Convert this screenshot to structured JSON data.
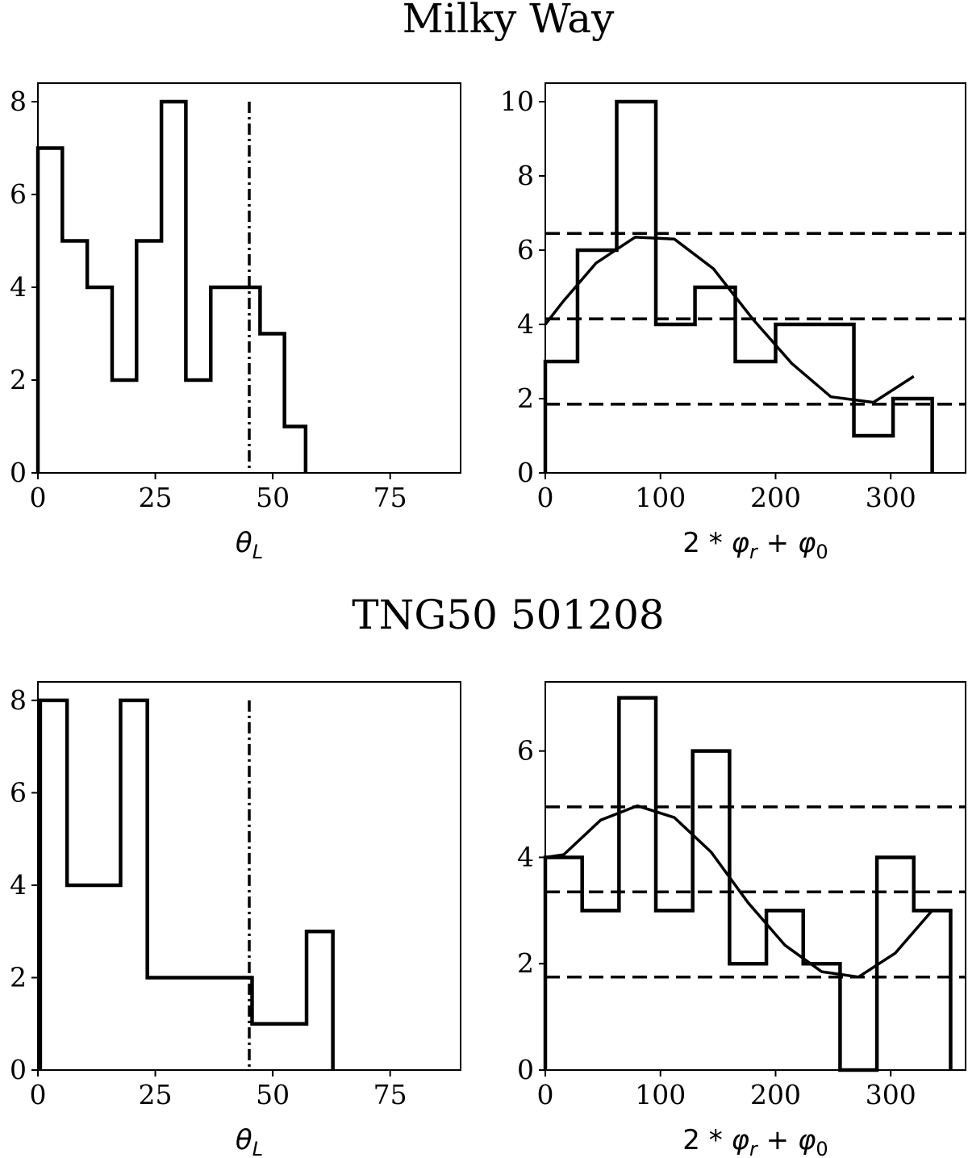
{
  "row_titles": [
    "Milky Way",
    "TNG50 501208"
  ],
  "chart_data": [
    {
      "id": "mw-theta",
      "type": "histogram",
      "row_title": "Milky Way",
      "xlabel": {
        "base": "θ",
        "sub": "L"
      },
      "xlim": [
        0,
        90
      ],
      "ylim": [
        0,
        8.4
      ],
      "xticks": [
        0,
        25,
        50,
        75
      ],
      "yticks": [
        0,
        2,
        4,
        6,
        8
      ],
      "bin_edges": [
        0,
        5.2,
        10.5,
        15.8,
        21,
        26.3,
        31.5,
        36.8,
        42,
        47.3,
        52.5,
        57
      ],
      "counts": [
        7,
        5,
        4,
        2,
        5,
        8,
        2,
        4,
        4,
        3,
        1
      ],
      "vline": 45,
      "fit_curve": null,
      "hlines": []
    },
    {
      "id": "mw-phase",
      "type": "histogram",
      "row_title": "Milky Way",
      "xlabel": {
        "pre": "2 * ",
        "base1": "φ",
        "sub1": "r",
        "mid": " + ",
        "base2": "φ",
        "sub2": "0"
      },
      "xlim": [
        0,
        365
      ],
      "ylim": [
        0,
        10.5
      ],
      "xticks": [
        0,
        100,
        200,
        300
      ],
      "yticks": [
        0,
        2,
        4,
        6,
        8,
        10
      ],
      "bin_edges": [
        0,
        28,
        62,
        96,
        130,
        165,
        200,
        234,
        268,
        302,
        336
      ],
      "counts": [
        3,
        6,
        10,
        4,
        5,
        3,
        4,
        4,
        1,
        2
      ],
      "vline": null,
      "fit_curve": {
        "x": [
          0,
          15,
          44,
          78,
          112,
          146,
          180,
          214,
          248,
          285,
          320
        ],
        "y": [
          4.0,
          4.6,
          5.65,
          6.35,
          6.3,
          5.5,
          4.15,
          2.95,
          2.05,
          1.9,
          2.6
        ]
      },
      "hlines": [
        1.85,
        4.15,
        6.45
      ]
    },
    {
      "id": "tng-theta",
      "type": "histogram",
      "row_title": "TNG50 501208",
      "xlabel": {
        "base": "θ",
        "sub": "L"
      },
      "xlim": [
        0,
        90
      ],
      "ylim": [
        0,
        8.4
      ],
      "xticks": [
        0,
        25,
        50,
        75
      ],
      "yticks": [
        0,
        2,
        4,
        6,
        8
      ],
      "bin_edges": [
        0.5,
        6.2,
        17.6,
        23.3,
        45.3,
        45.6,
        57.2,
        62.8
      ],
      "counts": [
        8,
        4,
        8,
        2,
        2,
        1,
        3
      ],
      "vline": 45,
      "fit_curve": null,
      "hlines": []
    },
    {
      "id": "tng-phase",
      "type": "histogram",
      "row_title": "TNG50 501208",
      "xlabel": {
        "pre": "2 * ",
        "base1": "φ",
        "sub1": "r",
        "mid": " + ",
        "base2": "φ",
        "sub2": "0"
      },
      "xlim": [
        0,
        365
      ],
      "ylim": [
        0,
        7.3
      ],
      "xticks": [
        0,
        100,
        200,
        300
      ],
      "yticks": [
        0,
        2,
        4,
        6
      ],
      "bin_edges": [
        0,
        32,
        64,
        96,
        128,
        160,
        192,
        224,
        256,
        288,
        320,
        352
      ],
      "counts": [
        4,
        3,
        7,
        3,
        6,
        2,
        3,
        2,
        0,
        4,
        3
      ],
      "vline": null,
      "fit_curve": {
        "x": [
          0,
          16,
          48,
          80,
          112,
          144,
          176,
          208,
          240,
          272,
          304,
          336
        ],
        "y": [
          4.0,
          4.05,
          4.7,
          4.97,
          4.75,
          4.1,
          3.15,
          2.35,
          1.85,
          1.75,
          2.2,
          3.0
        ]
      },
      "hlines": [
        1.75,
        3.35,
        4.95
      ]
    }
  ]
}
